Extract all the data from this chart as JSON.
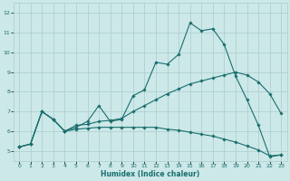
{
  "xlabel": "Humidex (Indice chaleur)",
  "background_color": "#cce8e8",
  "grid_color": "#aacccc",
  "line_color": "#1a6e6e",
  "xlim": [
    -0.5,
    23.5
  ],
  "ylim": [
    4.5,
    12.5
  ],
  "yticks": [
    5,
    6,
    7,
    8,
    9,
    10,
    11,
    12
  ],
  "xticks": [
    0,
    1,
    2,
    3,
    4,
    5,
    6,
    7,
    8,
    9,
    10,
    11,
    12,
    13,
    14,
    15,
    16,
    17,
    18,
    19,
    20,
    21,
    22,
    23
  ],
  "line1_x": [
    0,
    1,
    2,
    3,
    4,
    5,
    6,
    7,
    8,
    9,
    10,
    11,
    12,
    13,
    14,
    15,
    16,
    17,
    18,
    19,
    20,
    21,
    22,
    23
  ],
  "line1_y": [
    5.2,
    5.35,
    7.0,
    6.6,
    6.0,
    6.2,
    6.5,
    7.3,
    6.5,
    6.6,
    7.8,
    8.1,
    9.5,
    9.4,
    9.9,
    11.5,
    11.1,
    11.2,
    10.4,
    8.8,
    7.6,
    6.3,
    4.7,
    4.8
  ],
  "line2_x": [
    0,
    1,
    2,
    3,
    4,
    5,
    6,
    7,
    8,
    9,
    10,
    11,
    12,
    13,
    14,
    15,
    16,
    17,
    18,
    19,
    20,
    21,
    22,
    23
  ],
  "line2_y": [
    5.2,
    5.35,
    7.0,
    6.6,
    6.0,
    6.3,
    6.35,
    6.5,
    6.55,
    6.65,
    7.0,
    7.3,
    7.6,
    7.9,
    8.15,
    8.4,
    8.55,
    8.7,
    8.85,
    9.0,
    8.85,
    8.5,
    7.9,
    6.9
  ],
  "line3_x": [
    0,
    1,
    2,
    3,
    4,
    5,
    6,
    7,
    8,
    9,
    10,
    11,
    12,
    13,
    14,
    15,
    16,
    17,
    18,
    19,
    20,
    21,
    22,
    23
  ],
  "line3_y": [
    5.2,
    5.35,
    7.0,
    6.6,
    6.0,
    6.1,
    6.15,
    6.2,
    6.2,
    6.2,
    6.2,
    6.2,
    6.2,
    6.1,
    6.05,
    5.95,
    5.85,
    5.75,
    5.6,
    5.45,
    5.25,
    5.05,
    4.75,
    4.8
  ],
  "marker_size": 1.8,
  "linewidth": 0.8,
  "tick_fontsize": 4.5,
  "xlabel_fontsize": 5.5
}
